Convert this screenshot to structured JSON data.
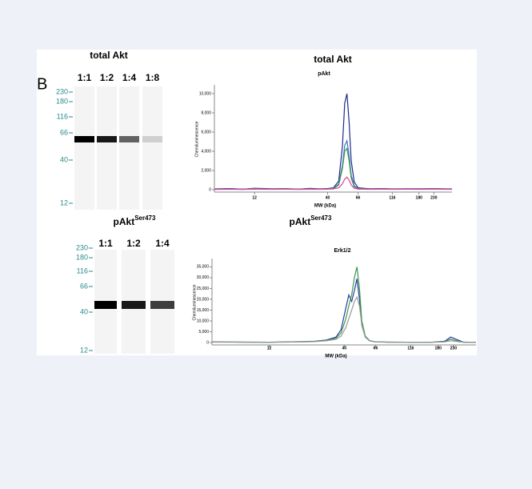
{
  "panel_label": "B",
  "blots": [
    {
      "title": "total Akt",
      "lanes": [
        "1:1",
        "1:2",
        "1:4",
        "1:8"
      ],
      "markers": [
        "230",
        "180",
        "116",
        "66",
        "40",
        "12"
      ]
    },
    {
      "title": "pAkt",
      "title_sup": "Ser473",
      "lanes": [
        "1:1",
        "1:2",
        "1:4"
      ],
      "markers": [
        "230",
        "180",
        "116",
        "66",
        "40",
        "12"
      ]
    }
  ],
  "chart_data": [
    {
      "type": "line",
      "heading": "total Akt",
      "title": "pAkt",
      "x_label": "MW (kDa)",
      "y_label": "Chemiluminescence",
      "xscale": "log",
      "xlim": [
        6.2,
        310
      ],
      "xticks": [
        12,
        40,
        66,
        116,
        180,
        230
      ],
      "ylim": [
        0,
        10500
      ],
      "yticks": [
        0,
        {
          "value": 2000,
          "label": "2,000"
        },
        {
          "value": 4000,
          "label": "4,000"
        },
        {
          "value": 6000,
          "label": "6,000"
        },
        {
          "value": 8000,
          "label": "8,000"
        },
        {
          "value": 10000,
          "label": "10,000"
        }
      ],
      "x": [
        6.2,
        8,
        10,
        12,
        16,
        20,
        25,
        30,
        35,
        40,
        44,
        48,
        51,
        53,
        55,
        57,
        59,
        62,
        66,
        72,
        80,
        100,
        116,
        150,
        180,
        230,
        310
      ],
      "series": [
        {
          "color": "#1f2a8a",
          "values": [
            80,
            120,
            60,
            150,
            90,
            110,
            70,
            130,
            80,
            120,
            200,
            900,
            4500,
            9000,
            10000,
            7000,
            3000,
            800,
            200,
            150,
            100,
            120,
            80,
            100,
            90,
            110,
            80
          ]
        },
        {
          "color": "#3d6fd0",
          "values": [
            60,
            90,
            50,
            120,
            70,
            100,
            60,
            100,
            70,
            100,
            150,
            600,
            2500,
            4600,
            5100,
            3500,
            1500,
            400,
            120,
            100,
            80,
            90,
            70,
            80,
            70,
            90,
            70
          ]
        },
        {
          "color": "#3a9a4a",
          "values": [
            50,
            70,
            40,
            90,
            60,
            80,
            50,
            80,
            60,
            80,
            120,
            500,
            2200,
            4000,
            4300,
            3000,
            1200,
            300,
            100,
            90,
            70,
            80,
            60,
            70,
            60,
            80,
            60
          ]
        },
        {
          "color": "#e040a0",
          "values": [
            30,
            40,
            30,
            50,
            40,
            50,
            30,
            50,
            40,
            50,
            80,
            200,
            600,
            1100,
            1300,
            1000,
            500,
            150,
            60,
            50,
            40,
            50,
            40,
            50,
            40,
            50,
            40
          ]
        }
      ]
    },
    {
      "type": "line",
      "heading": "pAkt",
      "heading_sup": "Ser473",
      "title": "Erk1/2",
      "x_label": "MW (kDa)",
      "y_label": "Chemiluminescence",
      "xscale": "log",
      "xlim": [
        4.8,
        330
      ],
      "xticks": [
        12,
        40,
        66,
        116,
        180,
        230
      ],
      "ylim": [
        0,
        37000
      ],
      "yticks": [
        0,
        {
          "value": 5000,
          "label": "5,000"
        },
        {
          "value": 10000,
          "label": "10,000"
        },
        {
          "value": 15000,
          "label": "15,000"
        },
        {
          "value": 20000,
          "label": "20,000"
        },
        {
          "value": 25000,
          "label": "25,000"
        },
        {
          "value": 30000,
          "label": "30,000"
        },
        {
          "value": 35000,
          "label": "35,000"
        }
      ],
      "x": [
        4.8,
        8,
        12,
        16,
        20,
        25,
        30,
        35,
        38,
        41,
        43,
        45,
        47,
        49,
        51,
        53,
        56,
        60,
        66,
        80,
        116,
        160,
        200,
        220,
        240,
        270,
        330
      ],
      "series": [
        {
          "color": "#2a3aa0",
          "values": [
            300,
            200,
            150,
            300,
            400,
            600,
            1200,
            2500,
            6000,
            16000,
            22000,
            19000,
            24000,
            29500,
            20000,
            8000,
            2500,
            800,
            300,
            200,
            150,
            100,
            600,
            2500,
            1500,
            200,
            100
          ]
        },
        {
          "color": "#3a9a4a",
          "values": [
            250,
            180,
            130,
            250,
            350,
            500,
            1000,
            2000,
            4500,
            11000,
            17000,
            22000,
            30000,
            35000,
            25000,
            10000,
            3000,
            900,
            300,
            200,
            150,
            100,
            400,
            1500,
            900,
            150,
            100
          ]
        },
        {
          "color": "#999999",
          "values": [
            200,
            150,
            100,
            200,
            300,
            400,
            800,
            1500,
            3000,
            7000,
            11000,
            15000,
            19000,
            21000,
            17000,
            8000,
            2500,
            700,
            250,
            150,
            120,
            90,
            300,
            800,
            500,
            100,
            80
          ]
        }
      ]
    }
  ]
}
